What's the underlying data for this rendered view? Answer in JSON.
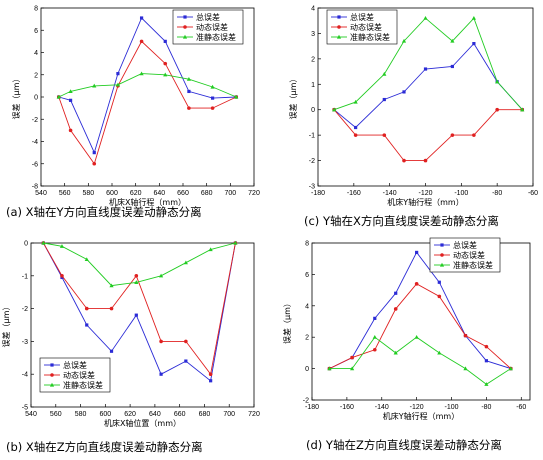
{
  "colors": {
    "total": "#2b2bd6",
    "dynamic": "#e02020",
    "quasi": "#22cc22"
  },
  "legend_labels": [
    "总误差",
    "动态误差",
    "准静态误差"
  ],
  "chart_data": [
    {
      "type": "line",
      "title": "",
      "caption": "(a) X轴在Y方向直线度误差动静态分离",
      "xlabel": "机床X轴行程（mm）",
      "ylabel": "误差（μm）",
      "xlim": [
        540,
        720
      ],
      "ylim": [
        -8,
        8
      ],
      "xticks": [
        540,
        560,
        580,
        600,
        620,
        640,
        660,
        680,
        700,
        720
      ],
      "yticks": [
        -8,
        -6,
        -4,
        -2,
        0,
        2,
        4,
        6,
        8
      ],
      "legend_position": "top-right",
      "series": [
        {
          "name": "总误差",
          "color_key": "total",
          "marker": "square",
          "x": [
            555,
            565,
            585,
            605,
            625,
            645,
            665,
            685,
            705
          ],
          "y": [
            0,
            -0.3,
            -5.0,
            2.1,
            7.1,
            5.0,
            0.5,
            -0.1,
            0
          ]
        },
        {
          "name": "动态误差",
          "color_key": "dynamic",
          "marker": "circle",
          "x": [
            555,
            565,
            585,
            605,
            625,
            645,
            665,
            685,
            705
          ],
          "y": [
            0,
            -3.0,
            -6.0,
            1.0,
            5.0,
            3.0,
            -1.0,
            -1.0,
            0
          ]
        },
        {
          "name": "准静态误差",
          "color_key": "quasi",
          "marker": "triangle",
          "x": [
            555,
            565,
            585,
            605,
            625,
            645,
            665,
            685,
            705
          ],
          "y": [
            0,
            0.5,
            1.0,
            1.1,
            2.1,
            2.0,
            1.6,
            0.9,
            0
          ]
        }
      ]
    },
    {
      "type": "line",
      "title": "",
      "caption": "(c) Y轴在X方向直线度误差动静态分离",
      "xlabel": "机床Y轴行程（mm）",
      "ylabel": "误差（μm）",
      "xlim": [
        -180,
        -60
      ],
      "ylim": [
        -3,
        4
      ],
      "xticks": [
        -180,
        -160,
        -140,
        -120,
        -100,
        -80,
        -60
      ],
      "yticks": [
        -3,
        -2,
        -1,
        0,
        1,
        2,
        3,
        4
      ],
      "legend_position": "top-left",
      "series": [
        {
          "name": "总误差",
          "color_key": "total",
          "marker": "square",
          "x": [
            -171,
            -159,
            -143,
            -132,
            -120,
            -105,
            -93,
            -80,
            -66
          ],
          "y": [
            0,
            -0.7,
            0.4,
            0.7,
            1.6,
            1.7,
            2.6,
            1.1,
            0
          ]
        },
        {
          "name": "动态误差",
          "color_key": "dynamic",
          "marker": "circle",
          "x": [
            -171,
            -159,
            -143,
            -132,
            -120,
            -105,
            -93,
            -80,
            -66
          ],
          "y": [
            0,
            -1.0,
            -1.0,
            -2.0,
            -2.0,
            -1.0,
            -1.0,
            0,
            0
          ]
        },
        {
          "name": "准静态误差",
          "color_key": "quasi",
          "marker": "triangle",
          "x": [
            -171,
            -159,
            -143,
            -132,
            -120,
            -105,
            -93,
            -80,
            -66
          ],
          "y": [
            0,
            0.3,
            1.4,
            2.7,
            3.6,
            2.7,
            3.6,
            1.1,
            0
          ]
        }
      ]
    },
    {
      "type": "line",
      "title": "",
      "caption": "(b) X轴在Z方向直线度误差动静态分离",
      "xlabel": "机床X轴位置（mm）",
      "ylabel": "误差（μm）",
      "xlim": [
        540,
        720
      ],
      "ylim": [
        -5,
        0
      ],
      "xticks": [
        540,
        560,
        580,
        600,
        620,
        640,
        660,
        680,
        700,
        720
      ],
      "yticks": [
        -5,
        -4,
        -3,
        -2,
        -1,
        0
      ],
      "legend_position": "bottom-left",
      "series": [
        {
          "name": "总误差",
          "color_key": "total",
          "marker": "square",
          "x": [
            550,
            565,
            585,
            605,
            625,
            645,
            665,
            685,
            705
          ],
          "y": [
            0,
            -1.05,
            -2.5,
            -3.3,
            -2.2,
            -4.0,
            -3.6,
            -4.2,
            0
          ]
        },
        {
          "name": "动态误差",
          "color_key": "dynamic",
          "marker": "circle",
          "x": [
            550,
            565,
            585,
            605,
            625,
            645,
            665,
            685,
            705
          ],
          "y": [
            0,
            -1.0,
            -2.0,
            -2.0,
            -1.0,
            -3.0,
            -3.0,
            -4.0,
            0
          ]
        },
        {
          "name": "准静态误差",
          "color_key": "quasi",
          "marker": "triangle",
          "x": [
            550,
            565,
            585,
            605,
            625,
            645,
            665,
            685,
            705
          ],
          "y": [
            0,
            -0.1,
            -0.5,
            -1.3,
            -1.2,
            -1.0,
            -0.6,
            -0.2,
            0
          ]
        }
      ]
    },
    {
      "type": "line",
      "title": "",
      "caption": "(d) Y轴在Z方向直线度误差动静态分离",
      "xlabel": "机床Y轴行程（mm）",
      "ylabel": "误差（μm）",
      "xlim": [
        -180,
        -55
      ],
      "ylim": [
        -2,
        8
      ],
      "xticks": [
        -180,
        -160,
        -140,
        -120,
        -100,
        -80,
        -60
      ],
      "yticks": [
        -2,
        0,
        2,
        4,
        6,
        8
      ],
      "legend_position": "top-right",
      "series": [
        {
          "name": "总误差",
          "color_key": "total",
          "marker": "square",
          "x": [
            -170,
            -157,
            -144,
            -132,
            -120,
            -107,
            -92,
            -80,
            -66
          ],
          "y": [
            0,
            0.7,
            3.2,
            4.8,
            7.4,
            5.5,
            2.1,
            0.5,
            0
          ]
        },
        {
          "name": "动态误差",
          "color_key": "dynamic",
          "marker": "circle",
          "x": [
            -170,
            -157,
            -144,
            -132,
            -120,
            -107,
            -92,
            -80,
            -66
          ],
          "y": [
            0,
            0.7,
            1.2,
            3.8,
            5.4,
            4.6,
            2.1,
            1.4,
            0
          ]
        },
        {
          "name": "准静态误差",
          "color_key": "quasi",
          "marker": "triangle",
          "x": [
            -170,
            -157,
            -144,
            -132,
            -120,
            -107,
            -92,
            -80,
            -66
          ],
          "y": [
            0,
            0,
            2.0,
            1.0,
            2.0,
            1.0,
            0,
            -1.0,
            0
          ]
        }
      ]
    }
  ]
}
